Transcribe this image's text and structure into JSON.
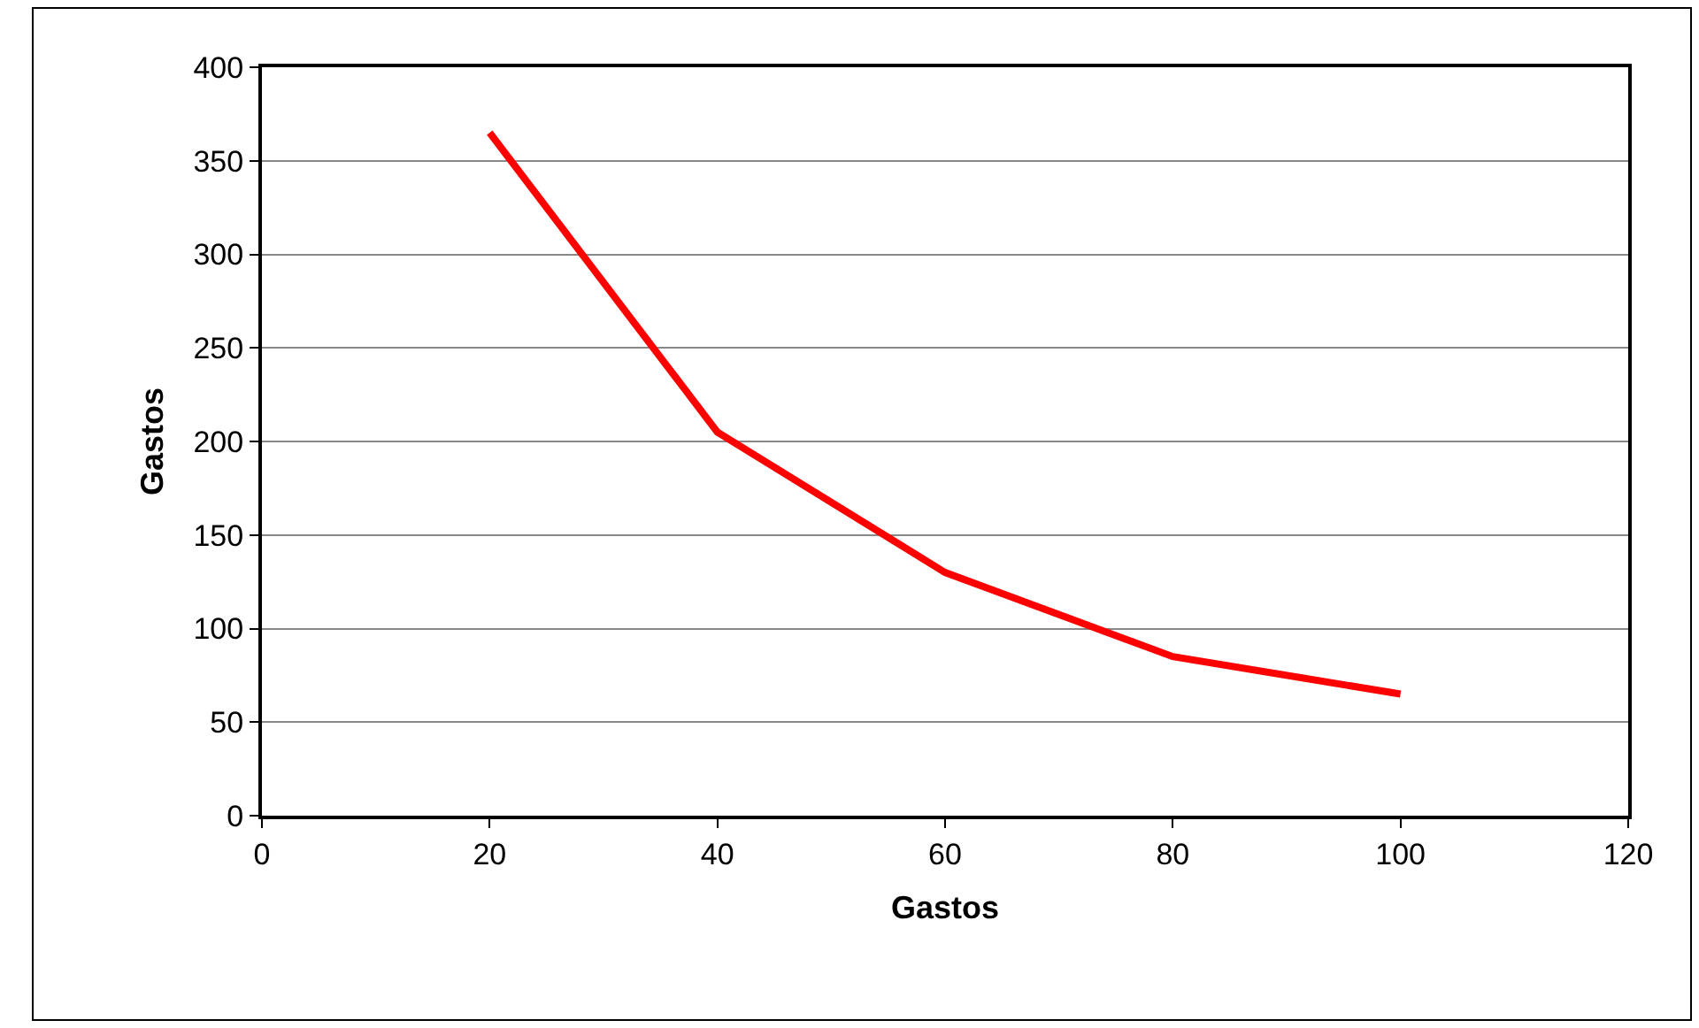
{
  "chart_data": {
    "type": "line",
    "xlabel": "Gastos",
    "ylabel": "Gastos",
    "x": [
      20,
      40,
      60,
      80,
      100
    ],
    "series": [
      {
        "color": "#ff0000",
        "values": [
          365,
          205,
          130,
          85,
          65
        ]
      }
    ],
    "xlim": [
      0,
      120
    ],
    "xticks": [
      0,
      20,
      40,
      60,
      80,
      100,
      120
    ],
    "ylim": [
      0,
      400
    ],
    "yticks": [
      0,
      50,
      100,
      150,
      200,
      250,
      300,
      350,
      400
    ],
    "grid": "y",
    "marker": "none",
    "line_style": "solid"
  }
}
